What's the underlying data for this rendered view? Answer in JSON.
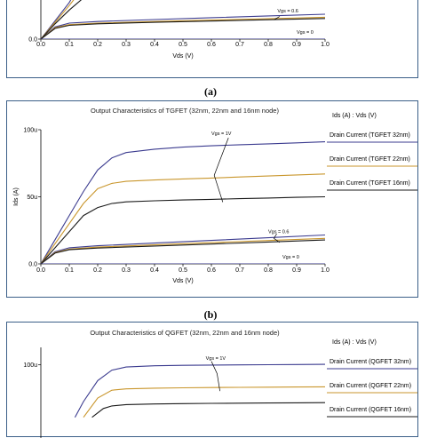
{
  "colors": {
    "s32": "#3b3b8f",
    "s22": "#c9962c",
    "s16": "#1a1a1a",
    "frame": "#3b5f88"
  },
  "captions": {
    "a": "(a)",
    "b": "(b)"
  },
  "chart_data": [
    {
      "panel": "a",
      "type": "line",
      "title": "",
      "xlabel": "Vds (V)",
      "ylabel": "",
      "xlim": [
        0,
        1.0
      ],
      "ylim": [
        0,
        32
      ],
      "x_ticks": [
        "0.0",
        "0.1",
        "0.2",
        "0.3",
        "0.4",
        "0.5",
        "0.6",
        "0.7",
        "0.8",
        "0.9",
        "1.0"
      ],
      "y_ticks": [
        {
          "value": 0,
          "label": "0.0"
        }
      ],
      "annotations": [
        "Vgs = 0.6",
        "Vgs = 0"
      ],
      "series": [
        {
          "key": "s32",
          "x": [
            0,
            0.05,
            0.1,
            0.2,
            0.4,
            0.6,
            0.8,
            1.0
          ],
          "y": [
            0,
            8,
            10.5,
            11.5,
            12.8,
            14,
            15.2,
            16.3
          ]
        },
        {
          "key": "s22",
          "x": [
            0,
            0.05,
            0.1,
            0.2,
            0.4,
            0.6,
            0.8,
            1.0
          ],
          "y": [
            0,
            7.5,
            9.5,
            10.5,
            11.5,
            12.5,
            13.4,
            14.3
          ]
        },
        {
          "key": "s16",
          "x": [
            0,
            0.05,
            0.1,
            0.2,
            0.4,
            0.6,
            0.8,
            1.0
          ],
          "y": [
            0,
            7,
            9,
            10,
            11,
            11.8,
            12.7,
            13.5
          ]
        },
        {
          "key": "s32",
          "x": [
            0,
            0.05,
            0.1,
            0.15
          ],
          "y": [
            0,
            12,
            24,
            40
          ]
        },
        {
          "key": "s22",
          "x": [
            0,
            0.05,
            0.1,
            0.15
          ],
          "y": [
            0,
            11,
            22,
            34
          ]
        },
        {
          "key": "s16",
          "x": [
            0,
            0.05,
            0.1,
            0.15,
            0.2
          ],
          "y": [
            0,
            10,
            19,
            27,
            33
          ]
        },
        {
          "key": "s32",
          "x": [
            0,
            1.0
          ],
          "y": [
            0,
            0
          ]
        }
      ]
    },
    {
      "panel": "b",
      "type": "line",
      "title": "Output Characteristics of TGFET (32nm, 22nm and 16nm node)",
      "xlabel": "Vds (V)",
      "ylabel": "Ids (A)",
      "xlim": [
        0,
        1.0
      ],
      "ylim": [
        0,
        100
      ],
      "x_ticks": [
        "0.0",
        "0.1",
        "0.2",
        "0.3",
        "0.4",
        "0.5",
        "0.6",
        "0.7",
        "0.8",
        "0.9",
        "1.0"
      ],
      "y_ticks": [
        {
          "value": 0,
          "label": "0.0"
        },
        {
          "value": 50,
          "label": "50u"
        },
        {
          "value": 100,
          "label": "100u"
        }
      ],
      "legend_header": "Ids (A) : Vds (V)",
      "legend": [
        {
          "key": "s32",
          "label": "Drain Current (TGFET 32nm)"
        },
        {
          "key": "s22",
          "label": "Drain Current (TGFET 22nm)"
        },
        {
          "key": "s16",
          "label": "Drain Current (TGFET 16nm)"
        }
      ],
      "annotations": [
        "Vgs = 1V",
        "Vgs = 0.6",
        "Vgs = 0"
      ],
      "series": [
        {
          "key": "s32",
          "x": [
            0,
            0.05,
            0.1,
            0.15,
            0.2,
            0.25,
            0.3,
            0.4,
            0.5,
            0.6,
            0.7,
            0.8,
            0.9,
            1.0
          ],
          "y": [
            0,
            18,
            36,
            54,
            70,
            79,
            83,
            85.5,
            87,
            88,
            88.8,
            89.5,
            90.2,
            91
          ]
        },
        {
          "key": "s22",
          "x": [
            0,
            0.05,
            0.1,
            0.15,
            0.2,
            0.25,
            0.3,
            0.4,
            0.5,
            0.6,
            0.7,
            0.8,
            0.9,
            1.0
          ],
          "y": [
            0,
            15,
            30,
            45,
            56,
            60,
            61.5,
            62.5,
            63.3,
            64,
            64.8,
            65.5,
            66.3,
            67
          ]
        },
        {
          "key": "s16",
          "x": [
            0,
            0.05,
            0.1,
            0.15,
            0.2,
            0.25,
            0.3,
            0.4,
            0.5,
            0.6,
            0.7,
            0.8,
            0.9,
            1.0
          ],
          "y": [
            0,
            12,
            24,
            36,
            42,
            45,
            46.2,
            47,
            47.6,
            48.1,
            48.6,
            49.1,
            49.6,
            50
          ]
        },
        {
          "key": "s32",
          "x": [
            0,
            0.05,
            0.1,
            0.2,
            0.4,
            0.6,
            0.8,
            1.0
          ],
          "y": [
            0,
            9,
            12,
            13.5,
            15.5,
            17.5,
            19.5,
            21.5
          ]
        },
        {
          "key": "s22",
          "x": [
            0,
            0.05,
            0.1,
            0.2,
            0.4,
            0.6,
            0.8,
            1.0
          ],
          "y": [
            0,
            8.5,
            11,
            12.5,
            14.2,
            15.8,
            17.4,
            19
          ]
        },
        {
          "key": "s16",
          "x": [
            0,
            0.05,
            0.1,
            0.2,
            0.4,
            0.6,
            0.8,
            1.0
          ],
          "y": [
            0,
            8,
            10.5,
            11.8,
            13.3,
            14.8,
            16.3,
            17.8
          ]
        },
        {
          "key": "s32",
          "x": [
            0,
            1.0
          ],
          "y": [
            0,
            0
          ]
        }
      ]
    },
    {
      "panel": "c",
      "type": "line",
      "title": "Output Characteristics of QGFET (32nm, 22nm and 16nm node)",
      "xlabel": "",
      "ylabel": "",
      "xlim": [
        0,
        1.0
      ],
      "ylim": [
        0,
        120
      ],
      "x_ticks": [],
      "y_ticks": [
        {
          "value": 100,
          "label": "100u"
        }
      ],
      "legend_header": "Ids (A) : Vds (V)",
      "legend": [
        {
          "key": "s32",
          "label": "Drain Current (QGFET 32nm)"
        },
        {
          "key": "s22",
          "label": "Drain Current (QGFET 22nm)"
        },
        {
          "key": "s16",
          "label": "Drain Current (QGFET 16nm)"
        }
      ],
      "annotations": [
        "Vgs = 1V"
      ],
      "series": [
        {
          "key": "s32",
          "x": [
            0.12,
            0.15,
            0.2,
            0.25,
            0.3,
            0.4,
            0.5,
            0.6,
            0.7,
            0.8,
            0.9,
            1.0
          ],
          "y": [
            40,
            58,
            82,
            94,
            97.5,
            99,
            99.5,
            99.8,
            100,
            100.2,
            100.4,
            100.6
          ]
        },
        {
          "key": "s22",
          "x": [
            0.15,
            0.2,
            0.25,
            0.3,
            0.4,
            0.5,
            0.6,
            0.7,
            0.8,
            0.9,
            1.0
          ],
          "y": [
            40,
            62,
            71,
            72.5,
            73.3,
            73.7,
            74,
            74.2,
            74.4,
            74.6,
            74.8
          ]
        },
        {
          "key": "s16",
          "x": [
            0.18,
            0.22,
            0.25,
            0.3,
            0.4,
            0.5,
            0.6,
            0.7,
            0.8,
            0.9,
            1.0
          ],
          "y": [
            40,
            50,
            53,
            54.5,
            55.2,
            55.6,
            55.9,
            56.1,
            56.3,
            56.5,
            56.7
          ]
        }
      ]
    }
  ]
}
